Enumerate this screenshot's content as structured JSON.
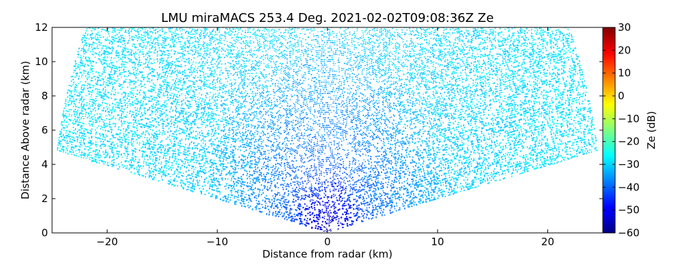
{
  "chart_data": {
    "type": "heatmap",
    "title": "LMU miraMACS 253.4 Deg. 2021-02-02T09:08:36Z  Ze",
    "xlabel": "Distance from radar (km)",
    "ylabel": "Distance Above radar  (km)",
    "xlim": [
      -25,
      25
    ],
    "ylim": [
      0,
      12
    ],
    "xticks": [
      -20,
      -10,
      0,
      10,
      20
    ],
    "yticks": [
      0,
      2,
      4,
      6,
      8,
      10,
      12
    ],
    "x_tick_labels": [
      "−20",
      "−10",
      "0",
      "10",
      "20"
    ],
    "y_tick_labels": [
      "0",
      "2",
      "4",
      "6",
      "8",
      "10",
      "12"
    ],
    "grid": false,
    "colorbar": {
      "label": "Ze (dB)",
      "colormap": "jet",
      "range": [
        -60,
        30
      ],
      "ticks": [
        30,
        20,
        10,
        0,
        -10,
        -20,
        -30,
        -40,
        -50,
        -60
      ],
      "tick_labels": [
        "30",
        "20",
        "10",
        "0",
        "−10",
        "−20",
        "−30",
        "−40",
        "−50",
        "−60"
      ]
    },
    "sector": {
      "origin": [
        0,
        0
      ],
      "max_range_km": 25,
      "elevation_deg_min": 11,
      "elevation_deg_max": 169
    },
    "field_description": [
      {
        "region": "near radar (0-4 km range)",
        "ze_db": -55
      },
      {
        "region": "mid range (4-10 km)",
        "ze_db": -40
      },
      {
        "region": "far range (>12 km)",
        "ze_db": -30
      }
    ]
  }
}
